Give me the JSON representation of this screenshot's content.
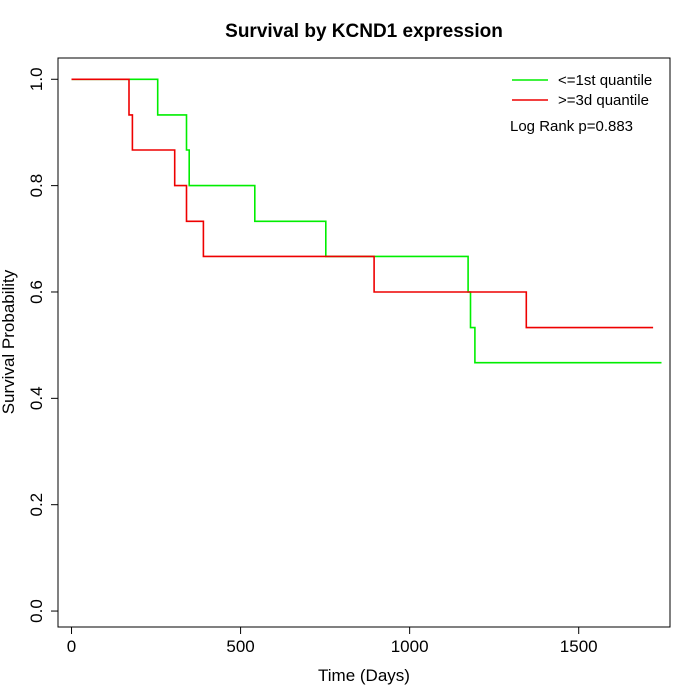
{
  "chart_data": {
    "type": "line",
    "title": "Survival by KCND1 expression",
    "xlabel": "Time (Days)",
    "ylabel": "Survival Probability",
    "xlim": [
      -40,
      1770
    ],
    "ylim": [
      -0.03,
      1.04
    ],
    "xticks": [
      0,
      500,
      1000,
      1500
    ],
    "xtick_labels": [
      "0",
      "500",
      "1000",
      "1500"
    ],
    "yticks": [
      0.0,
      0.2,
      0.4,
      0.6,
      0.8,
      1.0
    ],
    "ytick_labels": [
      "0.0",
      "0.2",
      "0.4",
      "0.6",
      "0.8",
      "1.0"
    ],
    "grid": false,
    "legend_position": "top-right",
    "annotation": "Log Rank p=0.883",
    "series": [
      {
        "name": "<=1st quantile",
        "color": "#00ee00",
        "step": true,
        "points": [
          [
            0,
            1.0
          ],
          [
            255,
            1.0
          ],
          [
            255,
            0.933
          ],
          [
            340,
            0.933
          ],
          [
            340,
            0.867
          ],
          [
            348,
            0.867
          ],
          [
            348,
            0.8
          ],
          [
            542,
            0.8
          ],
          [
            542,
            0.733
          ],
          [
            752,
            0.733
          ],
          [
            752,
            0.667
          ],
          [
            1173,
            0.667
          ],
          [
            1173,
            0.6
          ],
          [
            1180,
            0.6
          ],
          [
            1180,
            0.533
          ],
          [
            1193,
            0.533
          ],
          [
            1193,
            0.467
          ],
          [
            1745,
            0.467
          ]
        ]
      },
      {
        "name": ">=3d quantile",
        "color": "#ee0000",
        "step": true,
        "points": [
          [
            0,
            1.0
          ],
          [
            170,
            1.0
          ],
          [
            170,
            0.933
          ],
          [
            180,
            0.933
          ],
          [
            180,
            0.867
          ],
          [
            305,
            0.867
          ],
          [
            305,
            0.8
          ],
          [
            340,
            0.8
          ],
          [
            340,
            0.733
          ],
          [
            390,
            0.733
          ],
          [
            390,
            0.667
          ],
          [
            895,
            0.667
          ],
          [
            895,
            0.6
          ],
          [
            1345,
            0.6
          ],
          [
            1345,
            0.533
          ],
          [
            1720,
            0.533
          ]
        ]
      }
    ]
  }
}
